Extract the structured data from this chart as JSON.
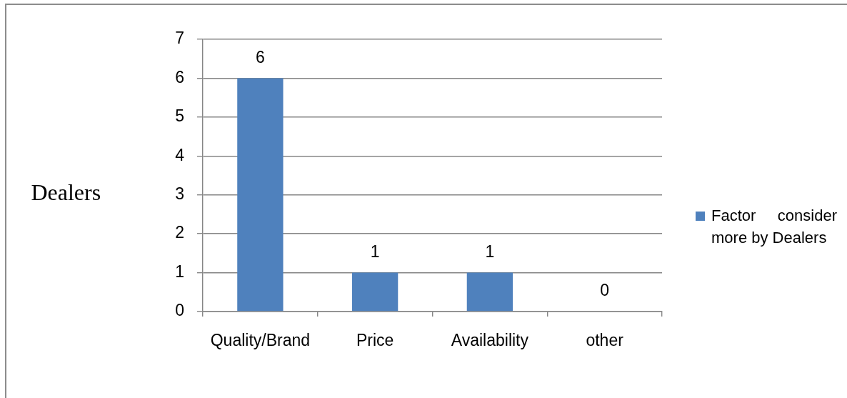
{
  "chart_data": {
    "type": "bar",
    "ylabel": "Dealers",
    "categories": [
      "Quality/Brand",
      "Price",
      "Availability",
      "other"
    ],
    "series": [
      {
        "name": "Factor consider more by Dealers",
        "color": "#4f81bd",
        "values": [
          6,
          1,
          1,
          0
        ]
      }
    ],
    "ylim": [
      0,
      7
    ],
    "yticks": [
      0,
      1,
      2,
      3,
      4,
      5,
      6,
      7
    ],
    "grid": "y",
    "legend": "right",
    "data_labels": true
  }
}
